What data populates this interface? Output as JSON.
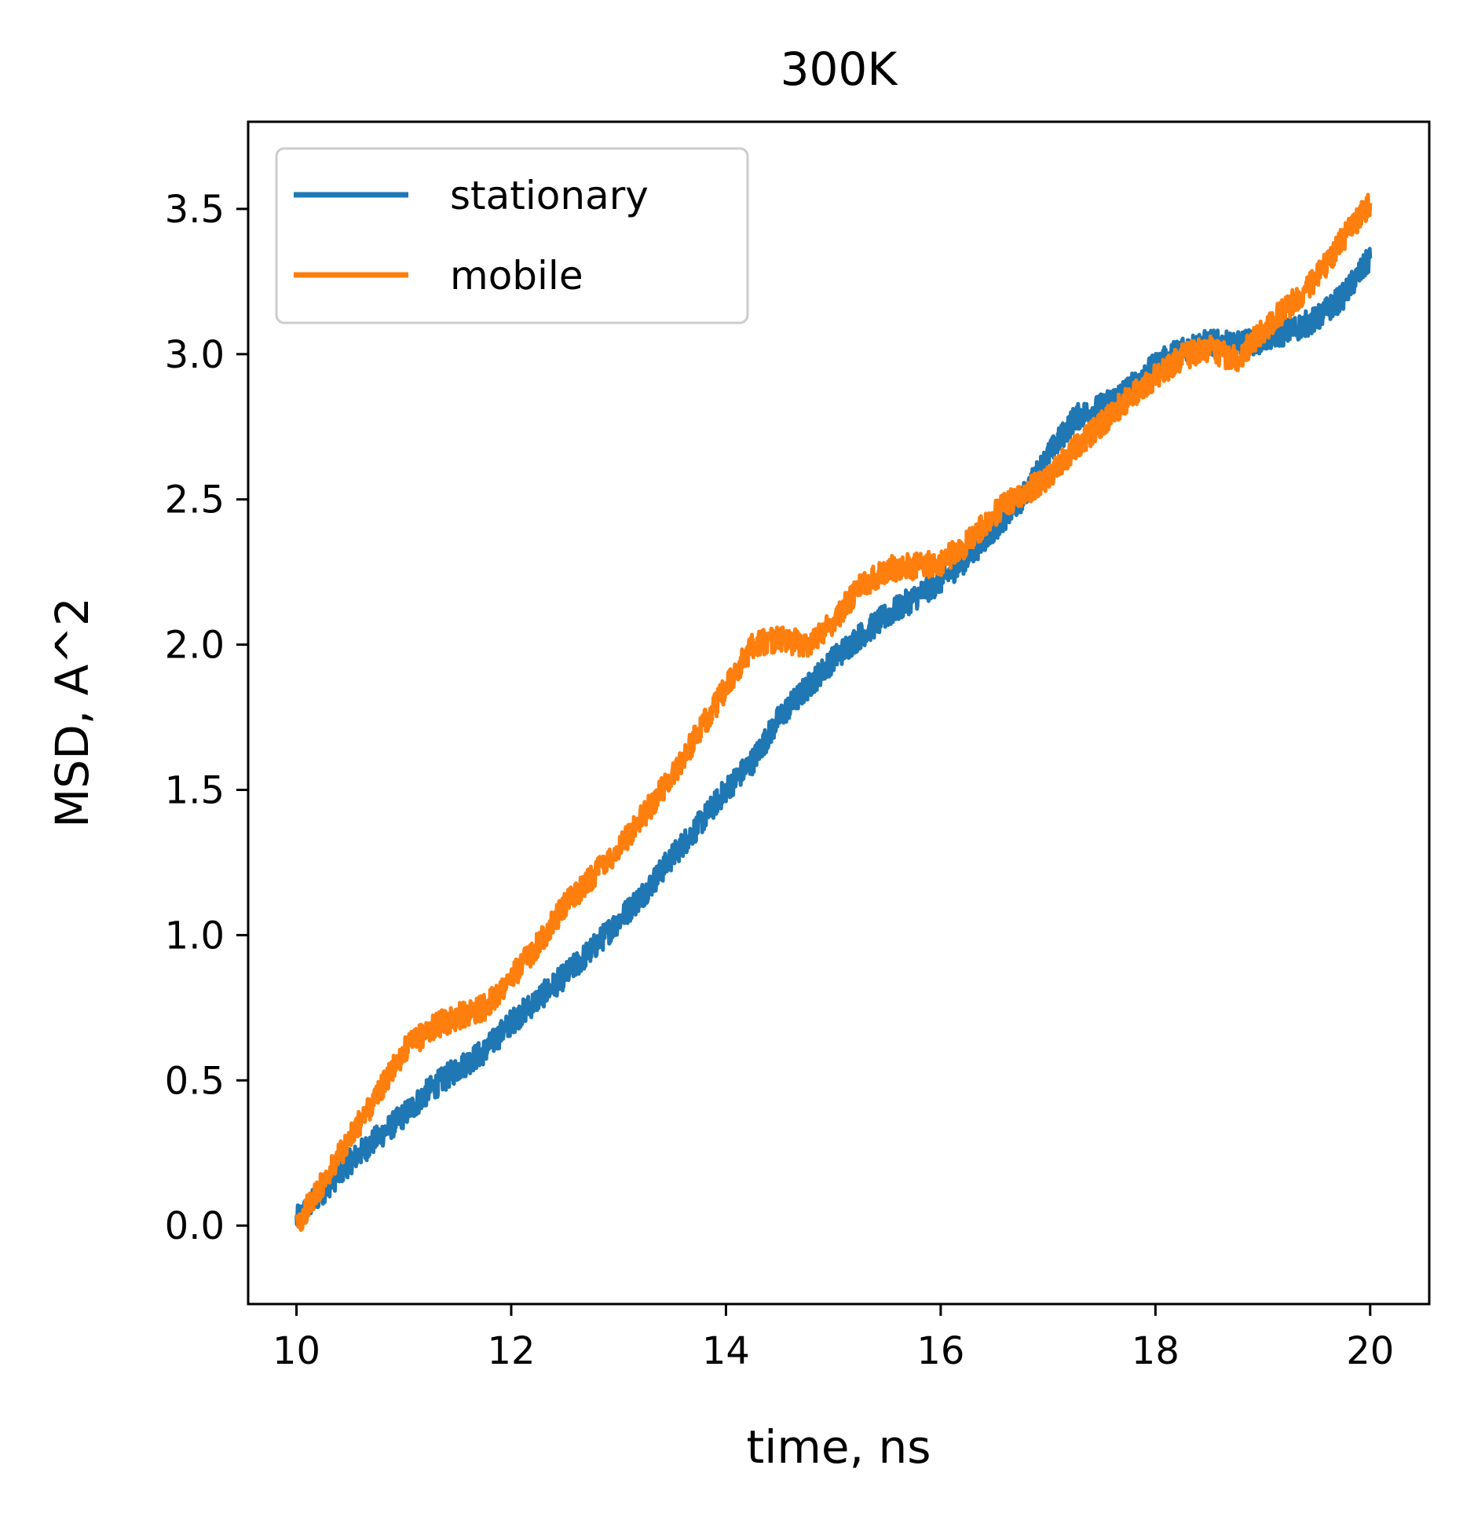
{
  "chart_data": {
    "type": "line",
    "title": "300K",
    "xlabel": "time, ns",
    "ylabel": "MSD, A^2",
    "xlim": [
      9.55,
      20.55
    ],
    "ylim": [
      -0.27,
      3.8
    ],
    "xticks": [
      10,
      12,
      14,
      16,
      18,
      20
    ],
    "xtick_labels": [
      "10",
      "12",
      "14",
      "16",
      "18",
      "20"
    ],
    "yticks": [
      0.0,
      0.5,
      1.0,
      1.5,
      2.0,
      2.5,
      3.0,
      3.5
    ],
    "ytick_labels": [
      "0.0",
      "0.5",
      "1.0",
      "1.5",
      "2.0",
      "2.5",
      "3.0",
      "3.5"
    ],
    "grid": false,
    "legend_position": "top-left",
    "series": [
      {
        "name": "stationary",
        "color": "#1f77b4",
        "x": [
          10.0,
          10.25,
          10.5,
          10.75,
          11.0,
          11.25,
          11.5,
          11.75,
          12.0,
          12.25,
          12.5,
          12.75,
          13.0,
          13.25,
          13.5,
          13.75,
          14.0,
          14.25,
          14.5,
          14.75,
          15.0,
          15.25,
          15.5,
          15.75,
          16.0,
          16.25,
          16.5,
          16.75,
          17.0,
          17.25,
          17.5,
          17.75,
          18.0,
          18.25,
          18.5,
          18.75,
          19.0,
          19.25,
          19.5,
          19.75,
          20.0
        ],
        "y": [
          0.02,
          0.12,
          0.22,
          0.3,
          0.38,
          0.47,
          0.54,
          0.6,
          0.7,
          0.78,
          0.86,
          0.95,
          1.05,
          1.15,
          1.27,
          1.38,
          1.5,
          1.6,
          1.75,
          1.85,
          1.95,
          2.03,
          2.1,
          2.16,
          2.22,
          2.3,
          2.4,
          2.5,
          2.65,
          2.78,
          2.82,
          2.88,
          2.96,
          3.02,
          3.04,
          3.03,
          3.05,
          3.08,
          3.12,
          3.2,
          3.33
        ]
      },
      {
        "name": "mobile",
        "color": "#ff7f0e",
        "x": [
          10.0,
          10.25,
          10.5,
          10.75,
          11.0,
          11.25,
          11.5,
          11.75,
          12.0,
          12.25,
          12.5,
          12.75,
          13.0,
          13.25,
          13.5,
          13.75,
          14.0,
          14.25,
          14.5,
          14.75,
          15.0,
          15.25,
          15.5,
          15.75,
          16.0,
          16.25,
          16.5,
          16.75,
          17.0,
          17.25,
          17.5,
          17.75,
          18.0,
          18.25,
          18.5,
          18.75,
          19.0,
          19.25,
          19.5,
          19.75,
          20.0
        ],
        "y": [
          0.0,
          0.15,
          0.3,
          0.45,
          0.6,
          0.68,
          0.72,
          0.75,
          0.85,
          0.97,
          1.1,
          1.2,
          1.3,
          1.42,
          1.55,
          1.7,
          1.85,
          2.0,
          2.02,
          2.0,
          2.08,
          2.2,
          2.26,
          2.27,
          2.28,
          2.35,
          2.45,
          2.52,
          2.57,
          2.68,
          2.76,
          2.85,
          2.92,
          2.99,
          3.02,
          2.98,
          3.08,
          3.17,
          3.26,
          3.4,
          3.52
        ]
      }
    ]
  }
}
